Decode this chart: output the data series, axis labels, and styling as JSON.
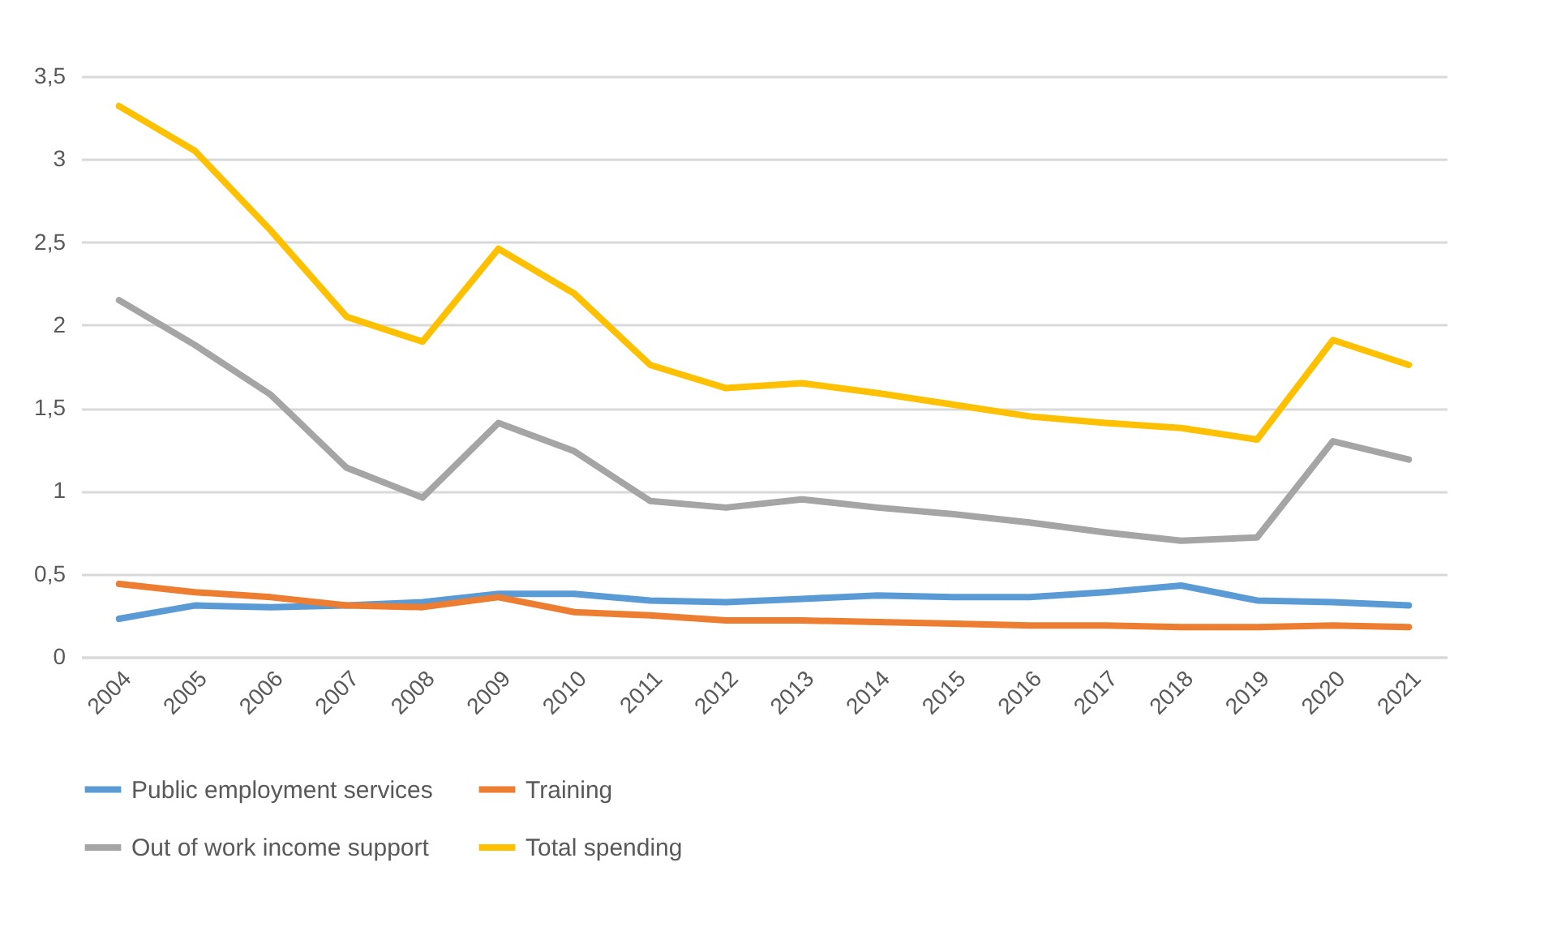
{
  "chart_data": {
    "type": "line",
    "categories": [
      "2004",
      "2005",
      "2006",
      "2007",
      "2008",
      "2009",
      "2010",
      "2011",
      "2012",
      "2013",
      "2014",
      "2015",
      "2016",
      "2017",
      "2018",
      "2019",
      "2020",
      "2021"
    ],
    "series": [
      {
        "name": "Public employment services",
        "color": "#5b9bd5",
        "values": [
          0.23,
          0.31,
          0.3,
          0.31,
          0.33,
          0.38,
          0.38,
          0.34,
          0.33,
          0.35,
          0.37,
          0.36,
          0.36,
          0.39,
          0.43,
          0.34,
          0.33,
          0.31
        ]
      },
      {
        "name": "Training",
        "color": "#ed7d31",
        "values": [
          0.44,
          0.39,
          0.36,
          0.31,
          0.3,
          0.36,
          0.27,
          0.25,
          0.22,
          0.22,
          0.21,
          0.2,
          0.19,
          0.19,
          0.18,
          0.18,
          0.19,
          0.18
        ]
      },
      {
        "name": "Out of work income support",
        "color": "#a5a5a5",
        "values": [
          2.15,
          1.88,
          1.58,
          1.14,
          0.96,
          1.41,
          1.24,
          0.94,
          0.9,
          0.95,
          0.9,
          0.86,
          0.81,
          0.75,
          0.7,
          0.72,
          1.3,
          1.19
        ]
      },
      {
        "name": "Total spending",
        "color": "#ffc000",
        "values": [
          3.32,
          3.05,
          2.57,
          2.05,
          1.9,
          2.46,
          2.19,
          1.76,
          1.62,
          1.65,
          1.59,
          1.52,
          1.45,
          1.41,
          1.38,
          1.31,
          1.91,
          1.76
        ]
      }
    ],
    "ylim": [
      0,
      3.5
    ],
    "yticks": [
      0,
      {
        "value": 0.5,
        "label": "0,5"
      },
      1,
      {
        "value": 1.5,
        "label": "1,5"
      },
      2,
      {
        "value": 2.5,
        "label": "2,5"
      },
      3,
      {
        "value": 3.5,
        "label": "3,5"
      }
    ],
    "grid": "y",
    "legend": "bottom",
    "marker": "none",
    "line_style": "solid"
  }
}
